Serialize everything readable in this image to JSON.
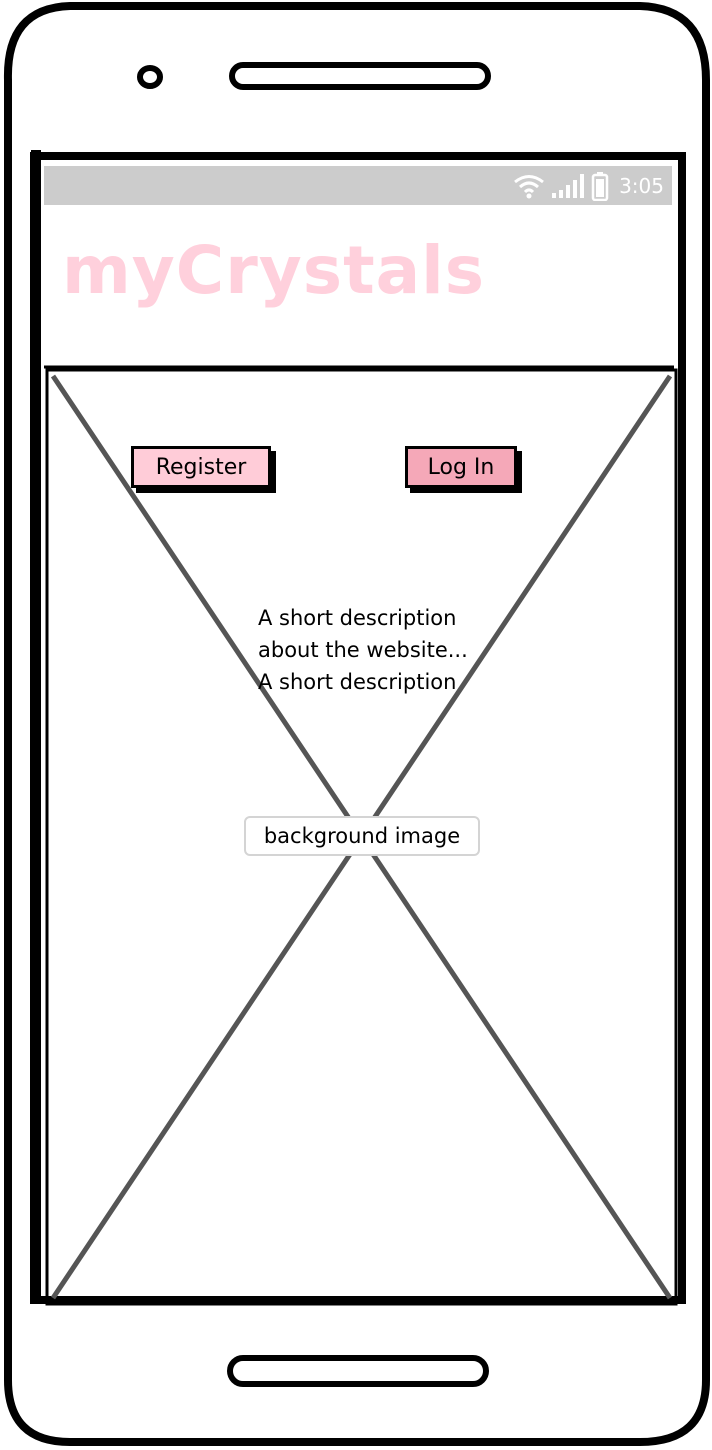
{
  "status_bar": {
    "time": "3:05",
    "icons": [
      "wifi-icon",
      "signal-icon",
      "battery-icon"
    ]
  },
  "app": {
    "title": "myCrystals",
    "title_color": "#ffd0dc"
  },
  "buttons": {
    "register_label": "Register",
    "login_label": "Log In",
    "register_color": "#ffccd8",
    "login_color": "#f5a8b8"
  },
  "content": {
    "description_lines": [
      "A short description",
      "about the website...",
      "A short description"
    ],
    "background_label": "background image"
  }
}
